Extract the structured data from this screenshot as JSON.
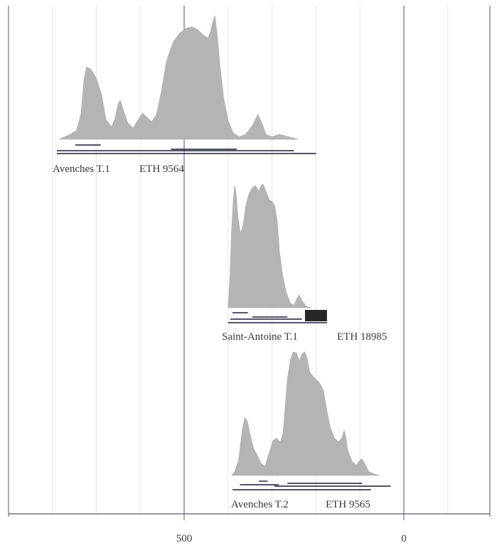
{
  "chart_data": {
    "type": "area",
    "title": "",
    "xlabel": "",
    "ylabel": "",
    "x_axis": {
      "ticks": [
        500,
        0
      ],
      "tick_labels": [
        "500",
        "0"
      ],
      "range": [
        800,
        -200
      ],
      "reversed": true,
      "minor_grid_step": 100,
      "grid": true
    },
    "colors": {
      "fill": "#b4b4b4",
      "axis": "#5a5a78",
      "major_grid": "#3c4e86",
      "minor_grid": "#e6e6e6",
      "range_lines": "#1c1c34",
      "highlight": "#262626"
    },
    "series": [
      {
        "name": "Avenches T.1",
        "lab_code": "ETH 9564",
        "points": [
          [
            785,
            0
          ],
          [
            765,
            3
          ],
          [
            745,
            7
          ],
          [
            735,
            20
          ],
          [
            728,
            48
          ],
          [
            722,
            58
          ],
          [
            712,
            56
          ],
          [
            700,
            49
          ],
          [
            688,
            36
          ],
          [
            678,
            16
          ],
          [
            665,
            10
          ],
          [
            657,
            17
          ],
          [
            650,
            29
          ],
          [
            645,
            31
          ],
          [
            638,
            23
          ],
          [
            628,
            13
          ],
          [
            616,
            9
          ],
          [
            604,
            16
          ],
          [
            595,
            21
          ],
          [
            586,
            18
          ],
          [
            574,
            14
          ],
          [
            563,
            20
          ],
          [
            552,
            38
          ],
          [
            540,
            63
          ],
          [
            525,
            78
          ],
          [
            510,
            85
          ],
          [
            495,
            89
          ],
          [
            482,
            90
          ],
          [
            470,
            88
          ],
          [
            458,
            84
          ],
          [
            446,
            81
          ],
          [
            440,
            86
          ],
          [
            434,
            95
          ],
          [
            430,
            99
          ],
          [
            425,
            84
          ],
          [
            418,
            57
          ],
          [
            410,
            33
          ],
          [
            400,
            15
          ],
          [
            388,
            5
          ],
          [
            375,
            2
          ],
          [
            360,
            4
          ],
          [
            345,
            11
          ],
          [
            332,
            20
          ],
          [
            322,
            12
          ],
          [
            314,
            4
          ],
          [
            300,
            2
          ],
          [
            284,
            4
          ],
          [
            240,
            0
          ]
        ],
        "ranges": [
          {
            "from": 748,
            "to": 690
          },
          {
            "from": 530,
            "to": 380
          },
          {
            "from": 790,
            "to": 250
          },
          {
            "from": 790,
            "to": 200
          }
        ]
      },
      {
        "name": "Saint-Antoine T.1",
        "lab_code": "ETH 18985",
        "points": [
          [
            400,
            0
          ],
          [
            396,
            20
          ],
          [
            392,
            54
          ],
          [
            388,
            75
          ],
          [
            385,
            85
          ],
          [
            382,
            80
          ],
          [
            378,
            64
          ],
          [
            372,
            52
          ],
          [
            366,
            57
          ],
          [
            360,
            70
          ],
          [
            354,
            78
          ],
          [
            346,
            83
          ],
          [
            338,
            85
          ],
          [
            330,
            81
          ],
          [
            325,
            85
          ],
          [
            320,
            86
          ],
          [
            314,
            81
          ],
          [
            306,
            75
          ],
          [
            300,
            74
          ],
          [
            294,
            71
          ],
          [
            288,
            60
          ],
          [
            283,
            39
          ],
          [
            276,
            23
          ],
          [
            268,
            11
          ],
          [
            258,
            3
          ],
          [
            250,
            2
          ],
          [
            244,
            6
          ],
          [
            238,
            9
          ],
          [
            232,
            5
          ],
          [
            222,
            1
          ],
          [
            212,
            0
          ]
        ],
        "ranges": [
          {
            "from": 390,
            "to": 355
          },
          {
            "from": 345,
            "to": 265
          },
          {
            "from": 395,
            "to": 232
          },
          {
            "from": 400,
            "to": 175
          }
        ],
        "highlight": {
          "from": 225,
          "to": 175
        }
      },
      {
        "name": "Avenches T.2",
        "lab_code": "ETH 9565",
        "points": [
          [
            392,
            0
          ],
          [
            385,
            3
          ],
          [
            376,
            12
          ],
          [
            368,
            35
          ],
          [
            362,
            45
          ],
          [
            356,
            42
          ],
          [
            350,
            32
          ],
          [
            342,
            21
          ],
          [
            334,
            16
          ],
          [
            326,
            10
          ],
          [
            316,
            7
          ],
          [
            306,
            18
          ],
          [
            298,
            27
          ],
          [
            290,
            29
          ],
          [
            281,
            26
          ],
          [
            275,
            33
          ],
          [
            270,
            53
          ],
          [
            265,
            75
          ],
          [
            258,
            90
          ],
          [
            252,
            96
          ],
          [
            244,
            95
          ],
          [
            238,
            89
          ],
          [
            232,
            94
          ],
          [
            226,
            96
          ],
          [
            220,
            91
          ],
          [
            214,
            80
          ],
          [
            204,
            76
          ],
          [
            192,
            72
          ],
          [
            183,
            66
          ],
          [
            176,
            52
          ],
          [
            168,
            38
          ],
          [
            158,
            29
          ],
          [
            148,
            26
          ],
          [
            140,
            30
          ],
          [
            136,
            35
          ],
          [
            132,
            30
          ],
          [
            128,
            20
          ],
          [
            118,
            11
          ],
          [
            108,
            8
          ],
          [
            102,
            11
          ],
          [
            96,
            13
          ],
          [
            90,
            10
          ],
          [
            80,
            3
          ],
          [
            66,
            1
          ],
          [
            54,
            0
          ]
        ],
        "ranges": [
          {
            "from": 330,
            "to": 310
          },
          {
            "from": 373,
            "to": 285
          },
          {
            "from": 265,
            "to": 95
          },
          {
            "from": 295,
            "to": 30
          },
          {
            "from": 390,
            "to": 75
          }
        ]
      }
    ]
  }
}
